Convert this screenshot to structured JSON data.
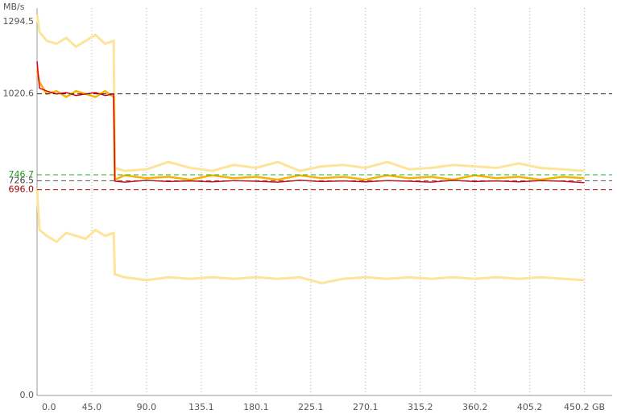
{
  "chart_data": {
    "type": "line",
    "y_label": "MB/s",
    "x": [
      0,
      2,
      8,
      16,
      24,
      32,
      40,
      48,
      56,
      63,
      64,
      72,
      90,
      108,
      126,
      144,
      162,
      180,
      198,
      216,
      234,
      252,
      270,
      288,
      306,
      324,
      342,
      360,
      378,
      396,
      414,
      432,
      450
    ],
    "series": [
      {
        "color": "#fde49a",
        "values": [
          1290,
          1230,
          1200,
          1190,
          1210,
          1180,
          1200,
          1220,
          1190,
          1200,
          770,
          760,
          765,
          790,
          770,
          760,
          780,
          770,
          790,
          760,
          775,
          780,
          770,
          790,
          765,
          770,
          780,
          775,
          770,
          785,
          770,
          765,
          760
        ]
      },
      {
        "color": "#fde49a",
        "values": [
          700,
          560,
          540,
          520,
          550,
          540,
          530,
          560,
          540,
          550,
          410,
          400,
          390,
          400,
          395,
          400,
          395,
          400,
          395,
          400,
          380,
          395,
          400,
          395,
          400,
          395,
          400,
          395,
          400,
          395,
          400,
          395,
          390
        ]
      },
      {
        "color": "#f4b400",
        "values": [
          1100,
          1060,
          1020,
          1030,
          1010,
          1030,
          1020,
          1010,
          1030,
          1010,
          730,
          745,
          735,
          740,
          730,
          745,
          735,
          740,
          730,
          745,
          735,
          740,
          730,
          745,
          735,
          740,
          730,
          745,
          735,
          740,
          730,
          740,
          735
        ]
      },
      {
        "color": "#e3001b",
        "values": [
          1130,
          1040,
          1030,
          1020,
          1025,
          1015,
          1020,
          1025,
          1015,
          1020,
          725,
          722,
          728,
          724,
          726,
          723,
          727,
          725,
          722,
          728,
          724,
          726,
          723,
          727,
          725,
          722,
          728,
          724,
          726,
          723,
          727,
          725,
          720
        ]
      }
    ],
    "xlim": [
      0,
      473
    ],
    "xticks": [
      {
        "value": 0,
        "label": "0.0"
      },
      {
        "value": 45,
        "label": "45.0"
      },
      {
        "value": 90,
        "label": "90.0"
      },
      135.1,
      180.1,
      225.1,
      270.1,
      315.2,
      360.2,
      405.2,
      {
        "value": 450.2,
        "label": "450.2 GB"
      }
    ],
    "ylim": [
      0,
      1294.5
    ],
    "yticks": [
      {
        "value": 0,
        "label": "0.0"
      },
      {
        "value": 696,
        "label": "696.0",
        "color": "#a00000",
        "line_color": "#c00000"
      },
      {
        "value": 726.5,
        "label": "726.5",
        "color": "#444444",
        "line_color": "#555555"
      },
      {
        "value": 746.7,
        "label": "746.7",
        "color": "#1a9a1a",
        "line_color": "#22b022"
      },
      {
        "value": 1020.6,
        "label": "1020.6",
        "color": "#555555",
        "line_color": "#222222"
      },
      1294.5
    ]
  }
}
